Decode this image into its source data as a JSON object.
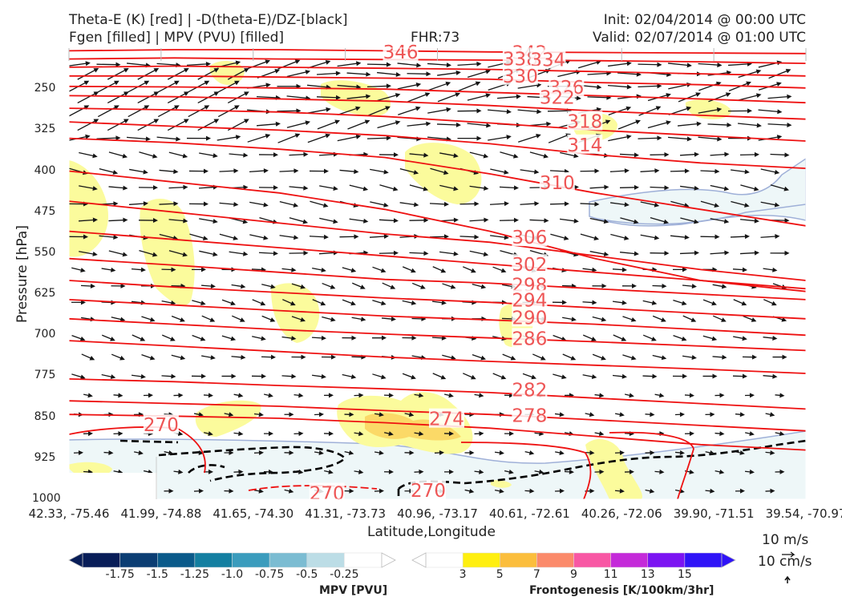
{
  "header": {
    "title_left_1": "Theta-E (K) [red] | -D(theta-E)/DZ-[black]",
    "title_left_2": "Fgen [filled] | MPV (PVU) [filled]",
    "fhr": "FHR:73",
    "init": "Init: 02/04/2014 @ 00:00 UTC",
    "valid": "Valid: 02/07/2014 @ 01:00 UTC"
  },
  "chart_data": {
    "type": "cross-section",
    "xlabel": "Latitude,Longitude",
    "ylabel": "Pressure [hPa]",
    "x_ticks": [
      "42.33, -75.46",
      "41.99, -74.88",
      "41.65, -74.30",
      "41.31, -73.73",
      "40.96, -73.17",
      "40.61, -72.61",
      "40.26, -72.06",
      "39.90, -71.51",
      "39.54, -70.97"
    ],
    "y_ticks": [
      250,
      325,
      400,
      475,
      550,
      625,
      700,
      775,
      850,
      925,
      1000
    ],
    "ylim": [
      1000,
      175
    ],
    "theta_e_contour_labels": [
      {
        "value": "346",
        "x": 3.6,
        "p": 182
      },
      {
        "value": "342",
        "x": 5.0,
        "p": 183
      },
      {
        "value": "338",
        "x": 4.9,
        "p": 195
      },
      {
        "value": "334",
        "x": 5.2,
        "p": 196
      },
      {
        "value": "330",
        "x": 4.9,
        "p": 226
      },
      {
        "value": "326",
        "x": 5.4,
        "p": 247
      },
      {
        "value": "322",
        "x": 5.3,
        "p": 265
      },
      {
        "value": "318",
        "x": 5.6,
        "p": 309
      },
      {
        "value": "314",
        "x": 5.6,
        "p": 352
      },
      {
        "value": "310",
        "x": 5.3,
        "p": 421
      },
      {
        "value": "306",
        "x": 5.0,
        "p": 521
      },
      {
        "value": "302",
        "x": 5.0,
        "p": 571
      },
      {
        "value": "298",
        "x": 5.0,
        "p": 608
      },
      {
        "value": "294",
        "x": 5.0,
        "p": 636
      },
      {
        "value": "290",
        "x": 5.0,
        "p": 668
      },
      {
        "value": "286",
        "x": 5.0,
        "p": 706
      },
      {
        "value": "282",
        "x": 5.0,
        "p": 800
      },
      {
        "value": "278",
        "x": 5.0,
        "p": 847
      },
      {
        "value": "274",
        "x": 4.1,
        "p": 853
      },
      {
        "value": "270",
        "x": 1.0,
        "p": 864
      },
      {
        "value": "270",
        "x": 2.8,
        "p": 989
      },
      {
        "value": "270",
        "x": 3.9,
        "p": 984
      }
    ],
    "wind_reference": {
      "horizontal": "10 m/s",
      "vertical": "10 cm/s"
    },
    "colorbars": [
      {
        "name": "MPV [PVU]",
        "ticks": [
          "-1.75",
          "-1.5",
          "-1.25",
          "-1.0",
          "-0.75",
          "-0.5",
          "-0.25"
        ],
        "colors": [
          "#081d58",
          "#0b3d73",
          "#0a5a8a",
          "#137fa1",
          "#3a9cbd",
          "#7bbcd2",
          "#bcdde6",
          "#ffffff"
        ]
      },
      {
        "name": "Frontogenesis [K/100km/3hr]",
        "ticks": [
          "3",
          "5",
          "7",
          "9",
          "11",
          "13",
          "15"
        ],
        "colors": [
          "#ffffff",
          "#ffef0f",
          "#fbbe3c",
          "#fb8a6a",
          "#f857a4",
          "#c42ad9",
          "#7b14f2",
          "#2f13f7"
        ]
      }
    ],
    "colors": {
      "theta_e": "#ee1111",
      "dthetae": "#000000",
      "fgen_light": "#fbfb9c",
      "mpv_light": "#e4f2f4",
      "mpv_edge": "#9fb0d8",
      "label": "#ee5555"
    }
  }
}
